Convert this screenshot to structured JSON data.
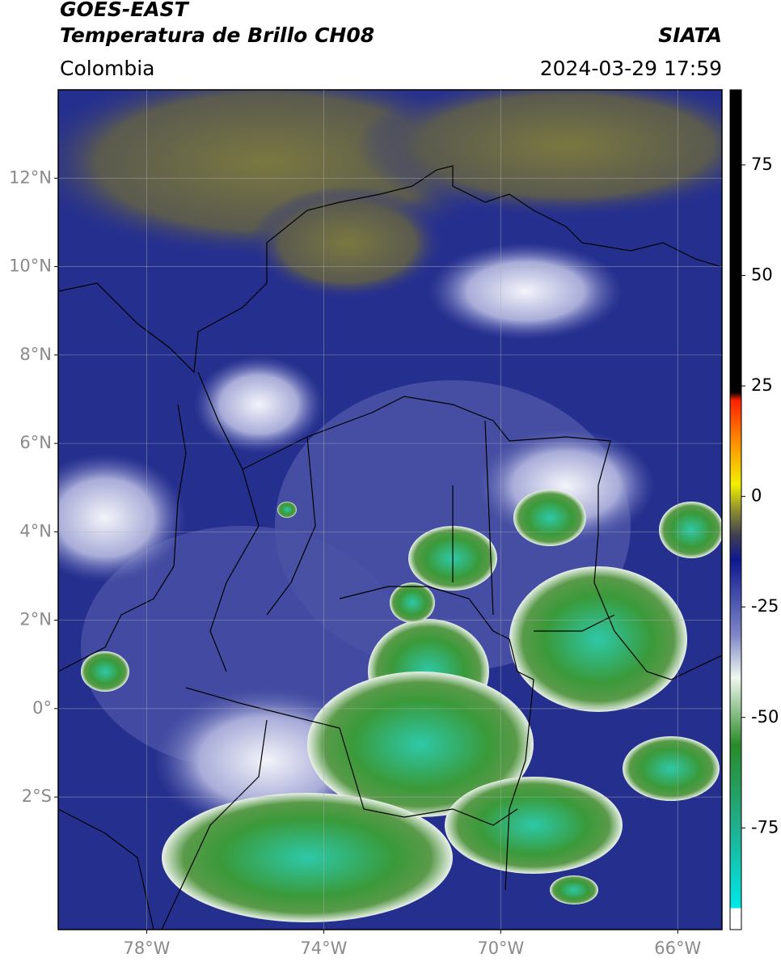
{
  "header": {
    "title": "GOES-EAST",
    "subtitle": "Temperatura de Brillo CH08",
    "source": "SIATA",
    "region": "Colombia",
    "datetime": "2024-03-29 17:59"
  },
  "map": {
    "xlim": [
      -80,
      -65
    ],
    "ylim": [
      -5,
      14
    ],
    "xticks": [
      {
        "value": -78,
        "label": "78°W"
      },
      {
        "value": -74,
        "label": "74°W"
      },
      {
        "value": -70,
        "label": "70°W"
      },
      {
        "value": -66,
        "label": "66°W"
      }
    ],
    "yticks": [
      {
        "value": 12,
        "label": "12°N"
      },
      {
        "value": 10,
        "label": "10°N"
      },
      {
        "value": 8,
        "label": "8°N"
      },
      {
        "value": 6,
        "label": "6°N"
      },
      {
        "value": 4,
        "label": "4°N"
      },
      {
        "value": 2,
        "label": "2°N"
      },
      {
        "value": 0,
        "label": "0°"
      },
      {
        "value": -2,
        "label": "2°S"
      }
    ],
    "grid": true
  },
  "colorbar": {
    "lim": [
      -98,
      92
    ],
    "ticks": [
      75,
      50,
      25,
      0,
      -25,
      -50,
      -75
    ]
  }
}
